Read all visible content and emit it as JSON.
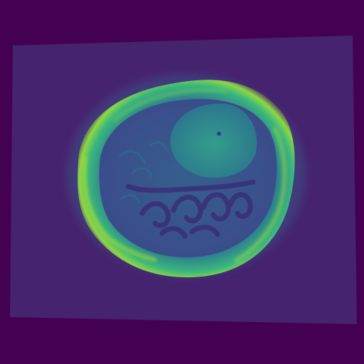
{
  "image": {
    "kind": "mri-slice",
    "colormap": "viridis",
    "colors": {
      "background": "#440154",
      "scan_field": "#46236e",
      "skull_ring": "#3bb77d",
      "skull_bright": "#b5de2b",
      "brain_mid": "#2a7a8e",
      "brain_dark": "#3a3f8a",
      "lesion": "#2f9e8f",
      "sulci": "#453a82"
    }
  }
}
